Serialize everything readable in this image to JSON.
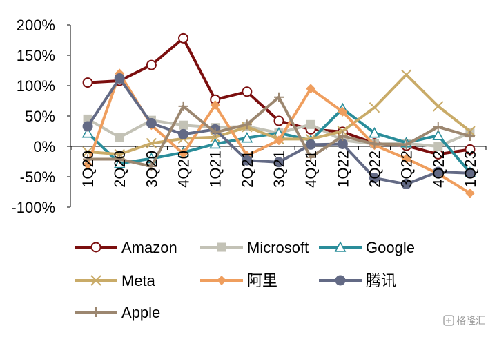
{
  "chart_data": {
    "type": "line",
    "title": "",
    "xlabel": "",
    "ylabel": "",
    "categories": [
      "1Q20",
      "2Q20",
      "3Q20",
      "4Q20",
      "1Q21",
      "2Q21",
      "3Q21",
      "4Q21",
      "1Q22",
      "2Q22",
      "3Q22",
      "4Q22",
      "1Q23"
    ],
    "y_ticks": [
      "200%",
      "150%",
      "100%",
      "50%",
      "0%",
      "-50%",
      "-100%"
    ],
    "y_tick_values": [
      200,
      150,
      100,
      50,
      0,
      -50,
      -100
    ],
    "ylim": [
      -100,
      200
    ],
    "grid": false,
    "legend_position": "bottom",
    "series": [
      {
        "name": "Amazon",
        "color": "#7b0e0e",
        "marker": "circle-open",
        "values": [
          105,
          108,
          134,
          178,
          77,
          90,
          42,
          28,
          24,
          5,
          1,
          -13,
          -5
        ]
      },
      {
        "name": "Microsoft",
        "color": "#c3c2b6",
        "marker": "square",
        "values": [
          45,
          15,
          43,
          35,
          31,
          33,
          22,
          36,
          10,
          4,
          5,
          0,
          22
        ]
      },
      {
        "name": "Google",
        "color": "#2a8d9a",
        "marker": "triangle-open",
        "values": [
          22,
          -28,
          -20,
          -10,
          4,
          14,
          22,
          10,
          62,
          22,
          6,
          18,
          -43
        ]
      },
      {
        "name": "Meta",
        "color": "#c9ab68",
        "marker": "x",
        "values": [
          -9,
          -13,
          5,
          13,
          15,
          32,
          12,
          12,
          25,
          64,
          118,
          66,
          25
        ]
      },
      {
        "name": "阿里",
        "color": "#ef9e5e",
        "marker": "diamond",
        "values": [
          -30,
          120,
          35,
          -12,
          68,
          -15,
          10,
          95,
          57,
          2,
          -20,
          -45,
          -77
        ]
      },
      {
        "name": "腾讯",
        "color": "#636a85",
        "marker": "circle",
        "values": [
          33,
          112,
          38,
          20,
          28,
          -23,
          -26,
          3,
          4,
          -52,
          -62,
          -42,
          -44
        ]
      },
      {
        "name": "Apple",
        "color": "#9c8770",
        "marker": "plus",
        "values": [
          -21,
          -21,
          -33,
          66,
          23,
          36,
          81,
          -18,
          17,
          4,
          3,
          32,
          17
        ]
      }
    ]
  },
  "watermark": {
    "text": "格隆汇"
  }
}
